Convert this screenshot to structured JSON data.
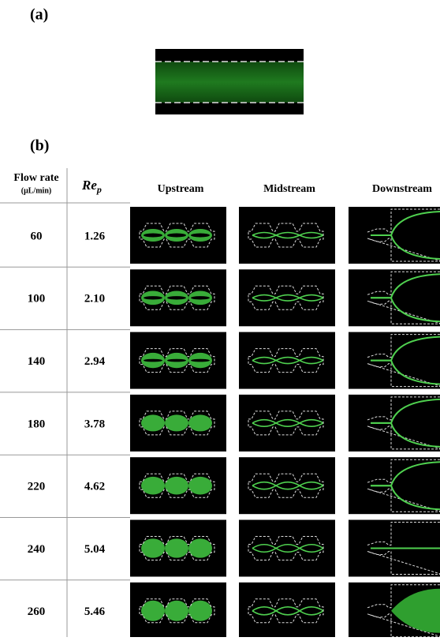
{
  "panels": {
    "a": "(a)",
    "b": "(b)"
  },
  "table": {
    "headers": [
      "Flow rate",
      "(μL/min)",
      {
        "main": "Re",
        "sub": "p"
      },
      "Upstream",
      "Midstream",
      "Downstream"
    ],
    "rows": [
      [
        "60",
        "1.26"
      ],
      [
        "100",
        "2.10"
      ],
      [
        "140",
        "2.94"
      ],
      [
        "180",
        "3.78"
      ],
      [
        "220",
        "4.62"
      ],
      [
        "240",
        "5.04"
      ],
      [
        "260",
        "5.46"
      ]
    ]
  }
}
